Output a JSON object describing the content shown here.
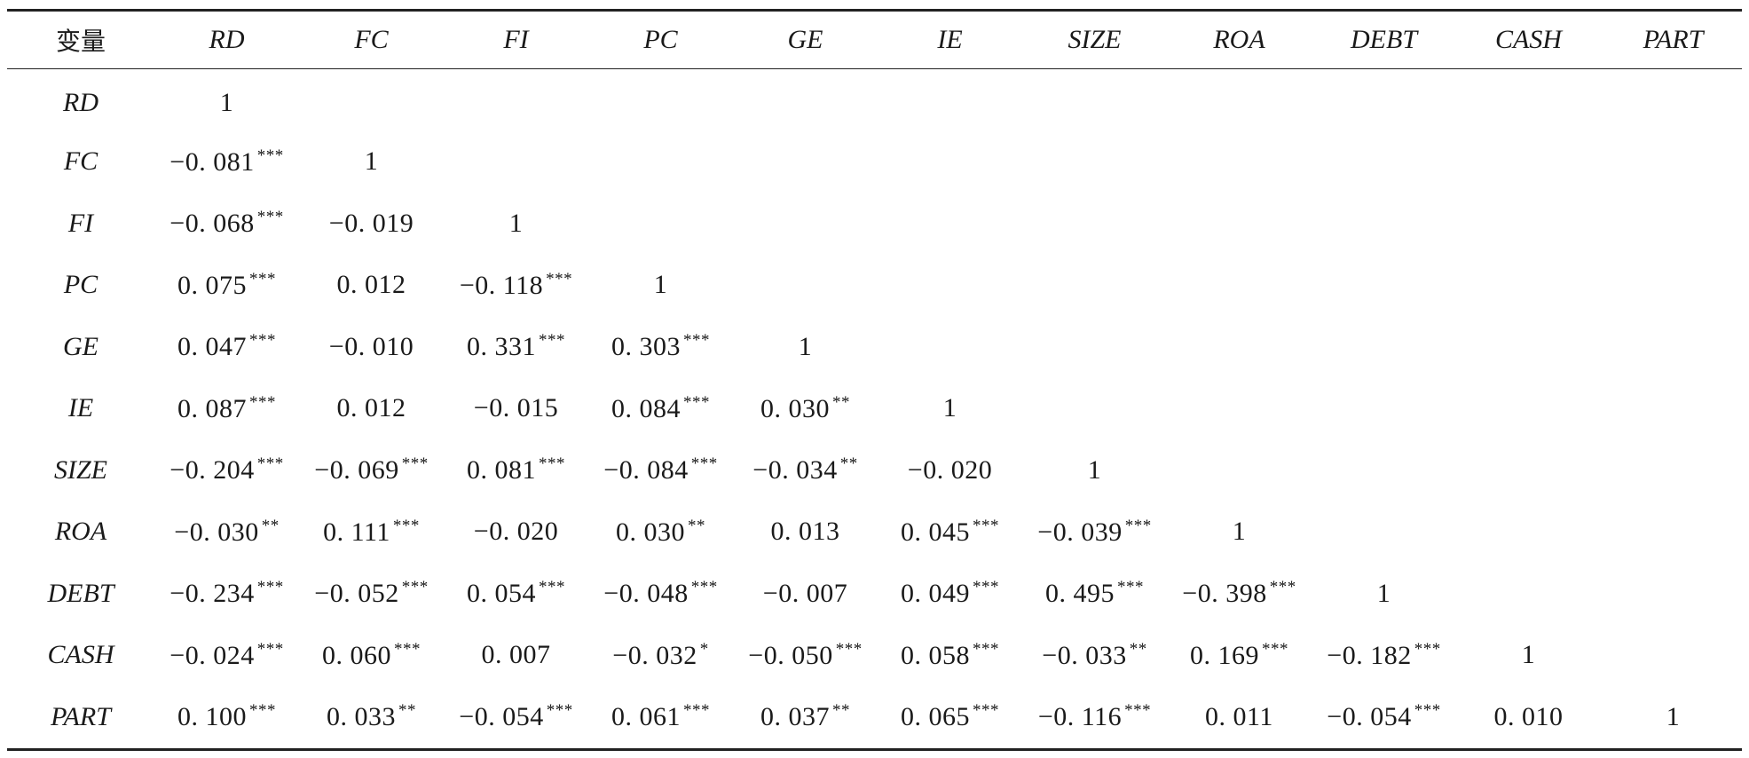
{
  "table": {
    "header_label": "变量",
    "variables": [
      "RD",
      "FC",
      "FI",
      "PC",
      "GE",
      "IE",
      "SIZE",
      "ROA",
      "DEBT",
      "CASH",
      "PART"
    ],
    "rows": [
      {
        "label": "RD",
        "cells": [
          {
            "v": "1",
            "s": ""
          }
        ]
      },
      {
        "label": "FC",
        "cells": [
          {
            "v": "−0. 081",
            "s": "***"
          },
          {
            "v": "1",
            "s": ""
          }
        ]
      },
      {
        "label": "FI",
        "cells": [
          {
            "v": "−0. 068",
            "s": "***"
          },
          {
            "v": "−0. 019",
            "s": ""
          },
          {
            "v": "1",
            "s": ""
          }
        ]
      },
      {
        "label": "PC",
        "cells": [
          {
            "v": "0. 075",
            "s": "***"
          },
          {
            "v": "0. 012",
            "s": ""
          },
          {
            "v": "−0. 118",
            "s": "***"
          },
          {
            "v": "1",
            "s": ""
          }
        ]
      },
      {
        "label": "GE",
        "cells": [
          {
            "v": "0. 047",
            "s": "***"
          },
          {
            "v": "−0. 010",
            "s": ""
          },
          {
            "v": "0. 331",
            "s": "***"
          },
          {
            "v": "0. 303",
            "s": "***"
          },
          {
            "v": "1",
            "s": ""
          }
        ]
      },
      {
        "label": "IE",
        "cells": [
          {
            "v": "0. 087",
            "s": "***"
          },
          {
            "v": "0. 012",
            "s": ""
          },
          {
            "v": "−0. 015",
            "s": ""
          },
          {
            "v": "0. 084",
            "s": "***"
          },
          {
            "v": "0. 030",
            "s": "**"
          },
          {
            "v": "1",
            "s": ""
          }
        ]
      },
      {
        "label": "SIZE",
        "cells": [
          {
            "v": "−0. 204",
            "s": "***"
          },
          {
            "v": "−0. 069",
            "s": "***"
          },
          {
            "v": "0. 081",
            "s": "***"
          },
          {
            "v": "−0. 084",
            "s": "***"
          },
          {
            "v": "−0. 034",
            "s": "**"
          },
          {
            "v": "−0. 020",
            "s": ""
          },
          {
            "v": "1",
            "s": ""
          }
        ]
      },
      {
        "label": "ROA",
        "cells": [
          {
            "v": "−0. 030",
            "s": "**"
          },
          {
            "v": "0. 111",
            "s": "***"
          },
          {
            "v": "−0. 020",
            "s": ""
          },
          {
            "v": "0. 030",
            "s": "**"
          },
          {
            "v": "0. 013",
            "s": ""
          },
          {
            "v": "0. 045",
            "s": "***"
          },
          {
            "v": "−0. 039",
            "s": "***"
          },
          {
            "v": "1",
            "s": ""
          }
        ]
      },
      {
        "label": "DEBT",
        "cells": [
          {
            "v": "−0. 234",
            "s": "***"
          },
          {
            "v": "−0. 052",
            "s": "***"
          },
          {
            "v": "0. 054",
            "s": "***"
          },
          {
            "v": "−0. 048",
            "s": "***"
          },
          {
            "v": "−0. 007",
            "s": ""
          },
          {
            "v": "0. 049",
            "s": "***"
          },
          {
            "v": "0. 495",
            "s": "***"
          },
          {
            "v": "−0. 398",
            "s": "***"
          },
          {
            "v": "1",
            "s": ""
          }
        ]
      },
      {
        "label": "CASH",
        "cells": [
          {
            "v": "−0. 024",
            "s": "***"
          },
          {
            "v": "0. 060",
            "s": "***"
          },
          {
            "v": "0. 007",
            "s": ""
          },
          {
            "v": "−0. 032",
            "s": "*"
          },
          {
            "v": "−0. 050",
            "s": "***"
          },
          {
            "v": "0. 058",
            "s": "***"
          },
          {
            "v": "−0. 033",
            "s": "**"
          },
          {
            "v": "0. 169",
            "s": "***"
          },
          {
            "v": "−0. 182",
            "s": "***"
          },
          {
            "v": "1",
            "s": ""
          }
        ]
      },
      {
        "label": "PART",
        "cells": [
          {
            "v": "0. 100",
            "s": "***"
          },
          {
            "v": "0. 033",
            "s": "**"
          },
          {
            "v": "−0. 054",
            "s": "***"
          },
          {
            "v": "0. 061",
            "s": "***"
          },
          {
            "v": "0. 037",
            "s": "**"
          },
          {
            "v": "0. 065",
            "s": "***"
          },
          {
            "v": "−0. 116",
            "s": "***"
          },
          {
            "v": "0. 011",
            "s": ""
          },
          {
            "v": "−0. 054",
            "s": "***"
          },
          {
            "v": "0. 010",
            "s": ""
          },
          {
            "v": "1",
            "s": ""
          }
        ]
      }
    ]
  }
}
